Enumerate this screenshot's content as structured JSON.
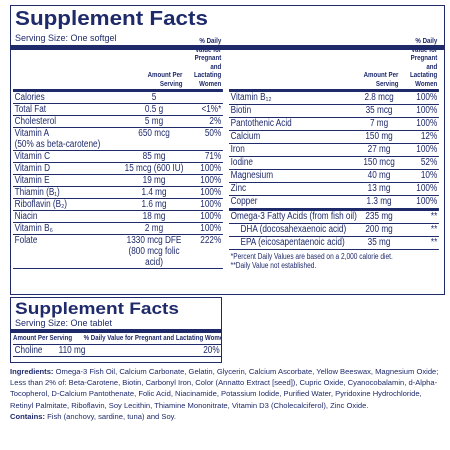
{
  "panel_1": {
    "title": "Supplement Facts",
    "serving_size": "Serving Size: One softgel",
    "amount_header": "Amount Per Serving",
    "dv_header": "% Daily Value for Pregnant and Lactating Women",
    "left_rows": [
      {
        "name": "Calories",
        "amount": "5"
      },
      {
        "name": "Total Fat",
        "amount": "0.5 g",
        "dv": "<1%*"
      },
      {
        "name": "Cholesterol",
        "amount": "5 mg",
        "dv": "2%"
      },
      {
        "name": "Vitamin A",
        "note": "(50% as beta-carotene)",
        "amount": "650 mcg",
        "dv": "50%"
      },
      {
        "name": "Vitamin C",
        "amount": "85 mg",
        "dv": "71%"
      },
      {
        "name": "Vitamin D",
        "amount": "15 mcg (600 IU)",
        "dv": "100%"
      },
      {
        "name": "Vitamin E",
        "amount": "19 mg",
        "dv": "100%"
      },
      {
        "name": "Thiamin (B₁)",
        "amount": "1.4 mg",
        "dv": "100%"
      },
      {
        "name": "Riboflavin (B₂)",
        "amount": "1.6 mg",
        "dv": "100%"
      },
      {
        "name": "Niacin",
        "amount": "18 mg",
        "dv": "100%"
      },
      {
        "name": "Vitamin B₆",
        "amount": "2 mg",
        "dv": "100%"
      },
      {
        "name": "Folate",
        "amount": "1330 mcg DFE",
        "amount_note": "(800 mcg folic acid)",
        "dv": "222%"
      }
    ],
    "right_rows": [
      {
        "name": "Vitamin B₁₂",
        "amount": "2.8 mcg",
        "dv": "100%"
      },
      {
        "name": "Biotin",
        "amount": "35 mcg",
        "dv": "100%"
      },
      {
        "name": "Pantothenic Acid",
        "amount": "7 mg",
        "dv": "100%"
      },
      {
        "name": "Calcium",
        "amount": "150 mg",
        "dv": "12%"
      },
      {
        "name": "Iron",
        "amount": "27 mg",
        "dv": "100%"
      },
      {
        "name": "Iodine",
        "amount": "150 mcg",
        "dv": "52%"
      },
      {
        "name": "Magnesium",
        "amount": "40 mg",
        "dv": "10%"
      },
      {
        "name": "Zinc",
        "amount": "13 mg",
        "dv": "100%"
      },
      {
        "name": "Copper",
        "amount": "1.3 mg",
        "dv": "100%"
      },
      {
        "name": "Omega-3 Fatty Acids (from fish oil)",
        "amount": "235 mg",
        "dv": "**",
        "sub_rows": [
          {
            "name": "DHA (docosahexaenoic acid)",
            "amount": "200 mg",
            "dv": "**"
          },
          {
            "name": "EPA (eicosapentaenoic acid)",
            "amount": "35 mg",
            "dv": "**"
          }
        ]
      }
    ],
    "footnotes": [
      "*Percent Daily Values are based on a 2,000 calorie diet.",
      "**Daily Value not established."
    ]
  },
  "panel_2": {
    "title": "Supplement Facts",
    "serving_size": "Serving Size: One tablet",
    "amount_header": "Amount Per Serving",
    "dv_header": "% Daily Value for Pregnant and Lactating Women",
    "rows": [
      {
        "name": "Choline",
        "amount": "110 mg",
        "dv": "20%"
      }
    ]
  },
  "ingredients": {
    "label": "Ingredients:",
    "text": "Omega-3 Fish Oil, Calcium Carbonate, Gelatin, Glycerin, Calcium Ascorbate, Yellow Beeswax, Magnesium Oxide; Less than 2% of: Beta-Carotene, Biotin, Carbonyl Iron, Color (Annatto Extract [seed]), Cupric Oxide, Cyanocobalamin, d-Alpha-Tocopherol, D-Calcium Pantothenate, Folic Acid, Niacinamide, Potassium Iodide, Purified Water, Pyridoxine Hydrochloride, Retinyl Palmitate, Riboflavin, Soy Lecithin, Thiamine Mononitrate, Vitamin D3 (Cholecalciferol), Zinc Oxide."
  },
  "contains": {
    "label": "Contains:",
    "text": "Fish (anchovy, sardine, tuna) and Soy."
  }
}
